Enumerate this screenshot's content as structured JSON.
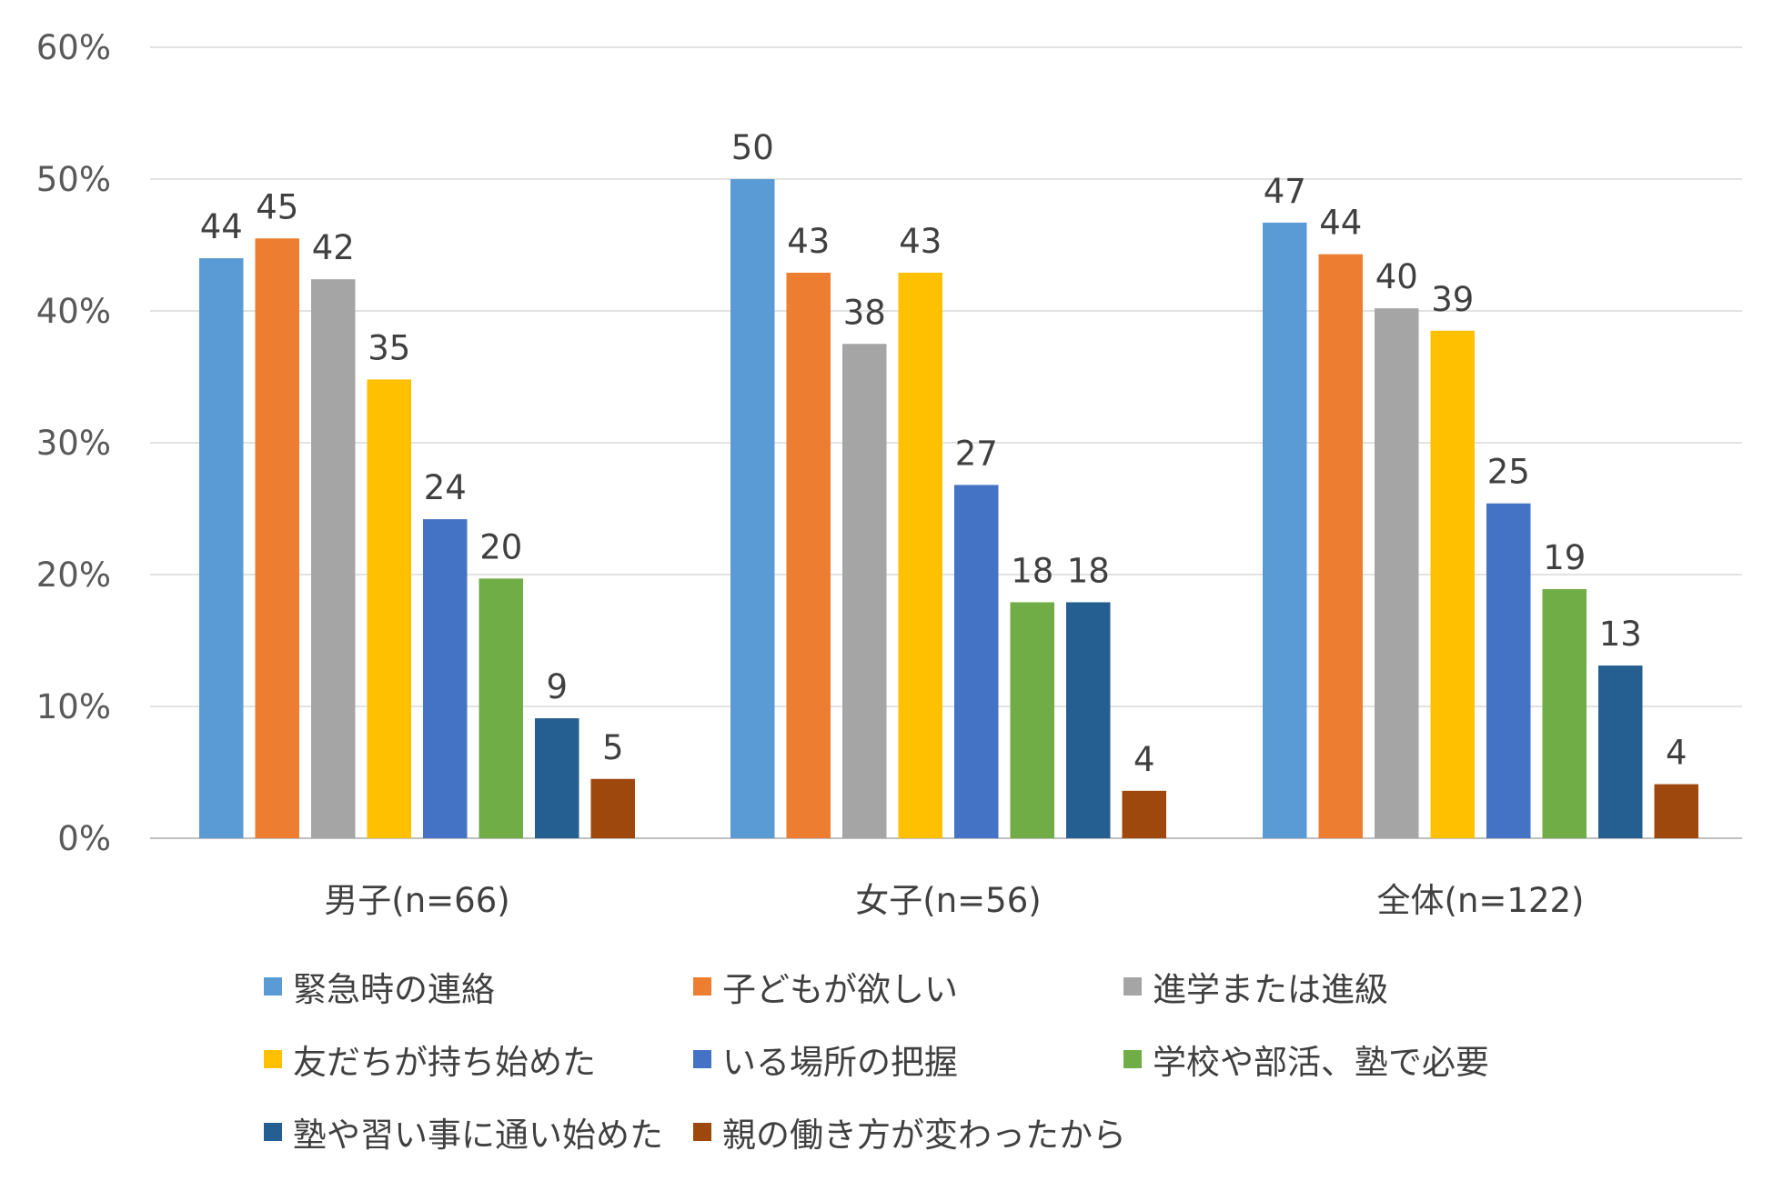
{
  "chart_data": {
    "type": "bar",
    "title": "",
    "xlabel": "",
    "ylabel": "",
    "ylim": [
      0,
      60
    ],
    "y_ticks": [
      "0%",
      "10%",
      "20%",
      "30%",
      "40%",
      "50%",
      "60%"
    ],
    "y_tick_values": [
      0,
      10,
      20,
      30,
      40,
      50,
      60
    ],
    "grid": true,
    "legend_position": "bottom",
    "categories": [
      "男子(n=66)",
      "女子(n=56)",
      "全体(n=122)"
    ],
    "series": [
      {
        "name": "緊急時の連絡",
        "color": "#5B9BD5",
        "values": [
          44,
          50,
          46.7
        ],
        "labels": [
          "44",
          "50",
          "47"
        ]
      },
      {
        "name": "子どもが欲しい",
        "color": "#ED7D31",
        "values": [
          45.5,
          42.9,
          44.3
        ],
        "labels": [
          "45",
          "43",
          "44"
        ]
      },
      {
        "name": "進学または進級",
        "color": "#A5A5A5",
        "values": [
          42.4,
          37.5,
          40.2
        ],
        "labels": [
          "42",
          "38",
          "40"
        ]
      },
      {
        "name": "友だちが持ち始めた",
        "color": "#FFC000",
        "values": [
          34.8,
          42.9,
          38.5
        ],
        "labels": [
          "35",
          "43",
          "39"
        ]
      },
      {
        "name": "いる場所の把握",
        "color": "#4472C4",
        "values": [
          24.2,
          26.8,
          25.4
        ],
        "labels": [
          "24",
          "27",
          "25"
        ]
      },
      {
        "name": "学校や部活、塾で必要",
        "color": "#70AD47",
        "values": [
          19.7,
          17.9,
          18.9
        ],
        "labels": [
          "20",
          "18",
          "19"
        ]
      },
      {
        "name": "塾や習い事に通い始めた",
        "color": "#255E91",
        "values": [
          9.1,
          17.9,
          13.1
        ],
        "labels": [
          "9",
          "18",
          "13"
        ]
      },
      {
        "name": "親の働き方が変わったから",
        "color": "#9E480E",
        "values": [
          4.5,
          3.6,
          4.1
        ],
        "labels": [
          "5",
          "4",
          "4"
        ]
      }
    ]
  }
}
